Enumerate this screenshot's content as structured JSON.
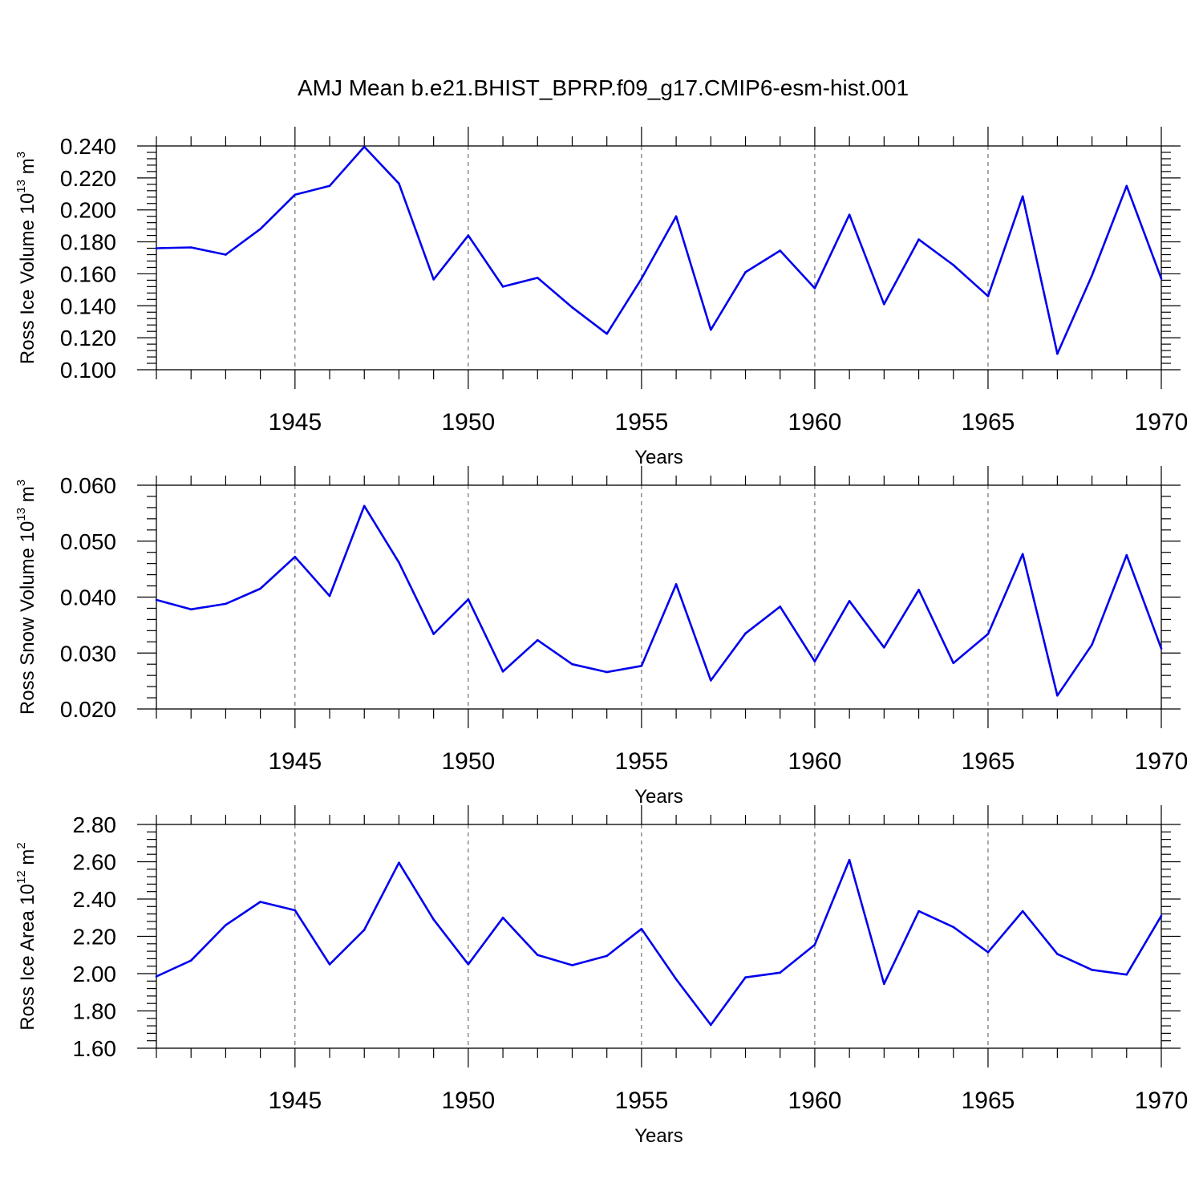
{
  "title": "AMJ Mean b.e21.BHIST_BPRP.f09_g17.CMIP6-esm-hist.001",
  "colors": {
    "series": "#0000ee",
    "axis": "#000000",
    "grid": "#555555"
  },
  "chart_data": [
    {
      "type": "line",
      "ylabel": {
        "main": "Ross Ice Volume 10",
        "exp": "13",
        "unit": " m",
        "unit_exp": "3"
      },
      "xlabel": "Years",
      "xlim": [
        1941,
        1970
      ],
      "ylim": [
        0.1,
        0.24
      ],
      "x_ticks": [
        1945,
        1950,
        1955,
        1960,
        1965,
        1970
      ],
      "y_ticks": [
        "0.100",
        "0.120",
        "0.140",
        "0.160",
        "0.180",
        "0.200",
        "0.220",
        "0.240"
      ],
      "grid": "vertical dashed at major x ticks",
      "x": [
        1941,
        1942,
        1943,
        1944,
        1945,
        1946,
        1947,
        1948,
        1949,
        1950,
        1951,
        1952,
        1953,
        1954,
        1955,
        1956,
        1957,
        1958,
        1959,
        1960,
        1961,
        1962,
        1963,
        1964,
        1965,
        1966,
        1967,
        1968,
        1969,
        1970
      ],
      "values": [
        0.176,
        0.1765,
        0.172,
        0.188,
        0.2095,
        0.215,
        0.2395,
        0.2165,
        0.1565,
        0.184,
        0.152,
        0.1575,
        0.139,
        0.1225,
        0.157,
        0.196,
        0.125,
        0.161,
        0.1745,
        0.151,
        0.197,
        0.141,
        0.1815,
        0.1655,
        0.146,
        0.2085,
        0.11,
        0.159,
        0.215,
        0.157
      ]
    },
    {
      "type": "line",
      "ylabel": {
        "main": "Ross Snow Volume 10",
        "exp": "13",
        "unit": " m",
        "unit_exp": "3"
      },
      "xlabel": "Years",
      "xlim": [
        1941,
        1970
      ],
      "ylim": [
        0.02,
        0.06
      ],
      "x_ticks": [
        1945,
        1950,
        1955,
        1960,
        1965,
        1970
      ],
      "y_ticks": [
        "0.020",
        "0.030",
        "0.040",
        "0.050",
        "0.060"
      ],
      "grid": "vertical dashed at major x ticks",
      "x": [
        1941,
        1942,
        1943,
        1944,
        1945,
        1946,
        1947,
        1948,
        1949,
        1950,
        1951,
        1952,
        1953,
        1954,
        1955,
        1956,
        1957,
        1958,
        1959,
        1960,
        1961,
        1962,
        1963,
        1964,
        1965,
        1966,
        1967,
        1968,
        1969,
        1970
      ],
      "values": [
        0.0395,
        0.0378,
        0.0388,
        0.0415,
        0.0472,
        0.0402,
        0.0563,
        0.0462,
        0.0334,
        0.0396,
        0.0267,
        0.0323,
        0.028,
        0.0266,
        0.0277,
        0.0423,
        0.0251,
        0.0335,
        0.0383,
        0.0285,
        0.0393,
        0.031,
        0.0413,
        0.0282,
        0.0334,
        0.0477,
        0.0224,
        0.0315,
        0.0475,
        0.0308
      ]
    },
    {
      "type": "line",
      "ylabel": {
        "main": "Ross Ice Area 10",
        "exp": "12",
        "unit": " m",
        "unit_exp": "2"
      },
      "xlabel": "Years",
      "xlim": [
        1941,
        1970
      ],
      "ylim": [
        1.6,
        2.8
      ],
      "x_ticks": [
        1945,
        1950,
        1955,
        1960,
        1965,
        1970
      ],
      "y_ticks": [
        "1.60",
        "1.80",
        "2.00",
        "2.20",
        "2.40",
        "2.60",
        "2.80"
      ],
      "grid": "vertical dashed at major x ticks",
      "x": [
        1941,
        1942,
        1943,
        1944,
        1945,
        1946,
        1947,
        1948,
        1949,
        1950,
        1951,
        1952,
        1953,
        1954,
        1955,
        1956,
        1957,
        1958,
        1959,
        1960,
        1961,
        1962,
        1963,
        1964,
        1965,
        1966,
        1967,
        1968,
        1969,
        1970
      ],
      "values": [
        1.985,
        2.07,
        2.26,
        2.385,
        2.34,
        2.05,
        2.235,
        2.595,
        2.29,
        2.05,
        2.3,
        2.1,
        2.045,
        2.095,
        2.24,
        1.97,
        1.725,
        1.98,
        2.005,
        2.155,
        2.61,
        1.945,
        2.335,
        2.25,
        2.115,
        2.335,
        2.105,
        2.02,
        1.995,
        2.31
      ]
    }
  ]
}
